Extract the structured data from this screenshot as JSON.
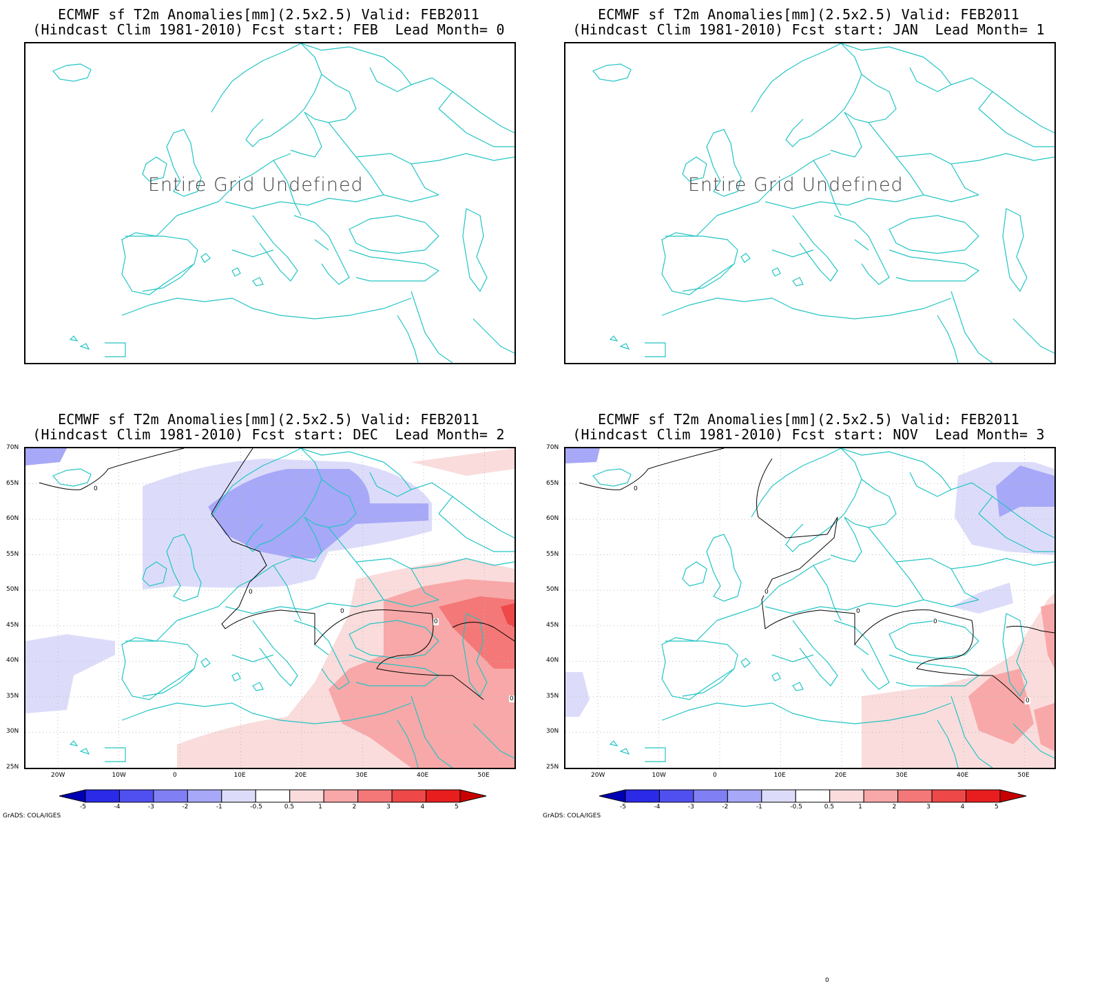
{
  "colorbar": {
    "labels": [
      "-5",
      "-4",
      "-3",
      "-2",
      "-1",
      "-0.5",
      "0.5",
      "1",
      "2",
      "3",
      "4",
      "5"
    ],
    "colors": [
      "#0000b4",
      "#2a2ae8",
      "#5050f0",
      "#8080f4",
      "#a8a8f8",
      "#dcdcfa",
      "#ffffff",
      "#fadcdc",
      "#f8a8a8",
      "#f47878",
      "#ee4848",
      "#e81e1e",
      "#c80000"
    ]
  },
  "credit": "GrADS: COLA/IGES",
  "lat_labels": [
    "70N",
    "65N",
    "60N",
    "55N",
    "50N",
    "45N",
    "40N",
    "35N",
    "30N",
    "25N"
  ],
  "lon_labels": [
    "20W",
    "10W",
    "0",
    "10E",
    "20E",
    "30E",
    "40E",
    "50E"
  ],
  "contour_label": "0",
  "panels": [
    {
      "title_line1": "ECMWF sf T2m Anomalies[mm](2.5x2.5) Valid: FEB2011",
      "title_line2": "(Hindcast Clim 1981-2010) Fcst start: FEB  Lead Month= 0",
      "message": "Entire Grid Undefined"
    },
    {
      "title_line1": "ECMWF sf T2m Anomalies[mm](2.5x2.5) Valid: FEB2011",
      "title_line2": "(Hindcast Clim 1981-2010) Fcst start: JAN  Lead Month= 1",
      "message": "Entire Grid Undefined"
    },
    {
      "title_line1": "ECMWF sf T2m Anomalies[mm](2.5x2.5) Valid: FEB2011",
      "title_line2": "(Hindcast Clim 1981-2010) Fcst start: DEC  Lead Month= 2",
      "message": ""
    },
    {
      "title_line1": "ECMWF sf T2m Anomalies[mm](2.5x2.5) Valid: FEB2011",
      "title_line2": "(Hindcast Clim 1981-2010) Fcst start: NOV  Lead Month= 3",
      "message": ""
    }
  ]
}
